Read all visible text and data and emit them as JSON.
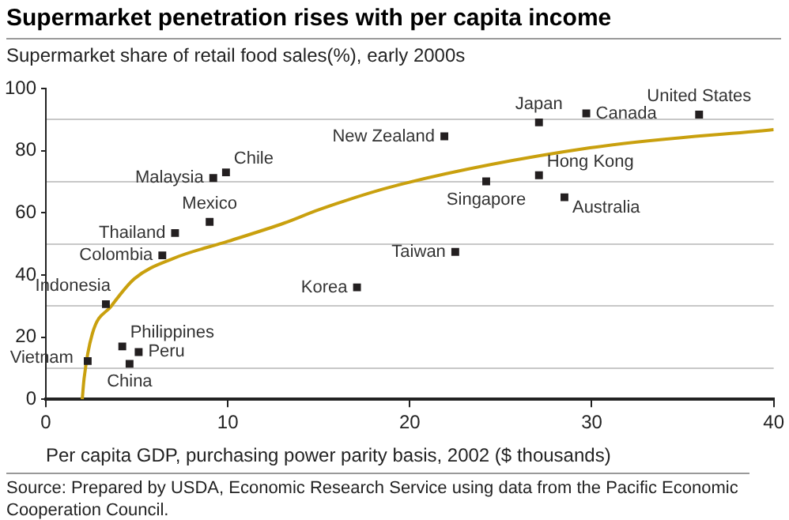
{
  "chart_data": {
    "type": "scatter",
    "title": "Supermarket penetration rises with per capita income",
    "subtitle": "Supermarket share of retail food sales(%), early 2000s",
    "xlabel": "Per capita GDP, purchasing power parity basis, 2002 ($ thousands)",
    "xlim": [
      0,
      40
    ],
    "xticks": [
      0,
      10,
      20,
      30,
      40
    ],
    "ylim": [
      0,
      100
    ],
    "yticks": [
      0,
      {
        "value": 10,
        "label": null
      },
      20,
      {
        "value": 30,
        "label": null
      },
      40,
      {
        "value": 50,
        "label": null
      },
      60,
      {
        "value": 70,
        "label": null
      },
      80,
      {
        "value": 90,
        "label": null
      },
      100
    ],
    "grid": "y",
    "legend": false,
    "marker": "square",
    "series": [
      {
        "type": "scatter",
        "color": "#231f20",
        "x": [
          2.3,
          4.2,
          5.1,
          4.6,
          3.3,
          6.4,
          7.1,
          9.0,
          9.2,
          9.9,
          17.1,
          21.9,
          27.1,
          29.7,
          35.9,
          27.1,
          24.2,
          28.5,
          22.5
        ],
        "values": [
          12.3,
          17.0,
          15.2,
          11.4,
          30.6,
          46.3,
          53.5,
          57.1,
          71.2,
          73.0,
          36.0,
          84.6,
          89.1,
          92.0,
          91.6,
          72.1,
          70.1,
          65.0,
          47.4
        ]
      },
      {
        "type": "line",
        "color": "#c9a00e",
        "marker": "none",
        "x": [
          2.0,
          2.1,
          2.55,
          3.6,
          4.87,
          7,
          10,
          13.1,
          15,
          19.2,
          29.9,
          40
        ],
        "values": [
          0,
          6.6,
          21,
          30,
          38.8,
          45.3,
          50.8,
          56.7,
          61,
          68.7,
          80.9,
          86.8
        ]
      }
    ],
    "annotations": [
      {
        "text": "Vietnam",
        "x": 2.3,
        "y": 12.3
      },
      {
        "text": "Philippines",
        "x": 4.2,
        "y": 17.0
      },
      {
        "text": "Peru",
        "x": 5.1,
        "y": 15.2
      },
      {
        "text": "China",
        "x": 4.6,
        "y": 11.4
      },
      {
        "text": "Indonesia",
        "x": 3.3,
        "y": 30.6
      },
      {
        "text": "Colombia",
        "x": 6.4,
        "y": 46.3
      },
      {
        "text": "Thailand",
        "x": 7.1,
        "y": 53.5
      },
      {
        "text": "Mexico",
        "x": 9.0,
        "y": 57.1
      },
      {
        "text": "Malaysia",
        "x": 9.2,
        "y": 71.2
      },
      {
        "text": "Chile",
        "x": 9.9,
        "y": 73.0
      },
      {
        "text": "Korea",
        "x": 17.1,
        "y": 36.0
      },
      {
        "text": "New Zealand",
        "x": 21.9,
        "y": 84.6
      },
      {
        "text": "Japan",
        "x": 27.1,
        "y": 89.1
      },
      {
        "text": "Canada",
        "x": 29.7,
        "y": 92.0
      },
      {
        "text": "United States",
        "x": 35.9,
        "y": 91.6
      },
      {
        "text": "Hong Kong",
        "x": 27.1,
        "y": 72.1
      },
      {
        "text": "Singapore",
        "x": 24.2,
        "y": 70.1
      },
      {
        "text": "Australia",
        "x": 28.5,
        "y": 65.0
      },
      {
        "text": "Taiwan",
        "x": 22.5,
        "y": 47.4
      },
      "Source: Prepared by USDA, Economic Research Service using data from the Pacific Economic Cooperation Council."
    ]
  }
}
